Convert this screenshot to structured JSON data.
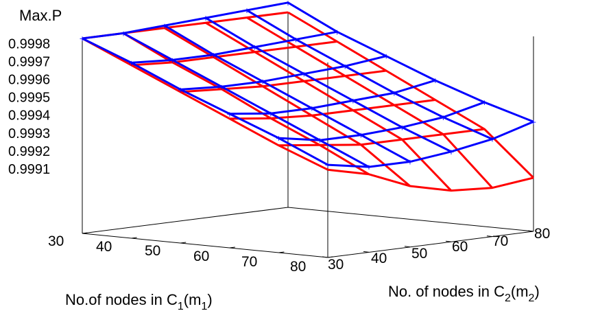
{
  "chart_data": {
    "type": "surface",
    "title": "",
    "zlabel": "Max.P",
    "xlabel": {
      "main": "No.of nodes in C",
      "sub1": "1",
      "mid": "(m",
      "sub2": "1",
      "end": ")"
    },
    "ylabel": {
      "main": "No. of nodes in C",
      "sub1": "2",
      "mid": "(m",
      "sub2": "2",
      "end": ")"
    },
    "x_ticks": [
      "30",
      "40",
      "50",
      "60",
      "70",
      "80"
    ],
    "y_ticks": [
      "30",
      "40",
      "50",
      "60",
      "70",
      "80"
    ],
    "z_ticks": [
      "0.9991",
      "0.9992",
      "0.9993",
      "0.9994",
      "0.9995",
      "0.9996",
      "0.9997",
      "0.9998"
    ],
    "x_values": [
      30,
      40,
      50,
      60,
      70,
      80
    ],
    "y_values": [
      30,
      40,
      50,
      60,
      70,
      80
    ],
    "zlim": [
      0.999,
      0.9998
    ],
    "series": [
      {
        "name": "",
        "color": "#ff0000",
        "z": [
          [
            0.9998,
            0.9998,
            0.9998,
            0.9998,
            0.9998,
            0.9998
          ],
          [
            0.99971,
            0.9997,
            0.9997,
            0.9997,
            0.9997,
            0.9997
          ],
          [
            0.99962,
            0.99961,
            0.9996,
            0.9996,
            0.9996,
            0.9996
          ],
          [
            0.99953,
            0.99951,
            0.9995,
            0.9995,
            0.9995,
            0.9995
          ],
          [
            0.99944,
            0.99942,
            0.9994,
            0.9994,
            0.9994,
            0.9994
          ],
          [
            0.99936,
            0.99932,
            0.99925,
            0.99921,
            0.9992,
            0.99922
          ]
        ]
      },
      {
        "name": "",
        "color": "#0000ff",
        "z": [
          [
            0.9998,
            0.9998,
            0.99981,
            0.99982,
            0.99983,
            0.99984
          ],
          [
            0.99972,
            0.99971,
            0.99971,
            0.99972,
            0.99973,
            0.99974
          ],
          [
            0.99963,
            0.99962,
            0.99962,
            0.99963,
            0.99964,
            0.99966
          ],
          [
            0.99955,
            0.99953,
            0.99953,
            0.99954,
            0.99955,
            0.99958
          ],
          [
            0.99947,
            0.99944,
            0.99944,
            0.99945,
            0.99947,
            0.99951
          ],
          [
            0.99938,
            0.99935,
            0.99935,
            0.99937,
            0.9994,
            0.99945
          ]
        ]
      }
    ],
    "grid": false,
    "legend": "none"
  }
}
